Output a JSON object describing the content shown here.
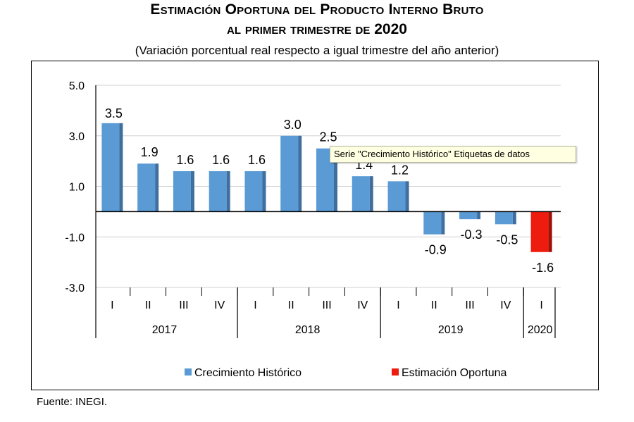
{
  "title_line1": "Estimación Oportuna del Producto Interno Bruto",
  "title_line2": "al primer trimestre de 2020",
  "subtitle": "(Variación porcentual real respecto a igual trimestre del año anterior)",
  "source": "Fuente: INEGI.",
  "tooltip": "Serie \"Crecimiento  Histórico\" Etiquetas de datos",
  "chart_data": {
    "type": "bar",
    "title": "Estimación Oportuna del Producto Interno Bruto al primer trimestre de 2020",
    "subtitle": "(Variación porcentual real respecto a igual trimestre del año anterior)",
    "ylim": [
      -3.0,
      5.0
    ],
    "yticks": [
      "5.0",
      "3.0",
      "1.0",
      "-1.0",
      "-3.0"
    ],
    "ytick_values": [
      5.0,
      3.0,
      1.0,
      -1.0,
      -3.0
    ],
    "grid": true,
    "legend_position": "bottom",
    "categories": [
      "I",
      "II",
      "III",
      "IV",
      "I",
      "II",
      "III",
      "IV",
      "I",
      "II",
      "III",
      "IV",
      "I"
    ],
    "years": [
      {
        "label": "2017",
        "count": 4
      },
      {
        "label": "2018",
        "count": 4
      },
      {
        "label": "2019",
        "count": 4
      },
      {
        "label": "2020",
        "count": 1
      }
    ],
    "values": [
      3.5,
      1.9,
      1.6,
      1.6,
      1.6,
      3.0,
      2.5,
      1.4,
      1.2,
      -0.9,
      -0.3,
      -0.5,
      -1.6
    ],
    "value_labels": [
      "3.5",
      "1.9",
      "1.6",
      "1.6",
      "1.6",
      "3.0",
      "2.5",
      "1.4",
      "1.2",
      "-0.9",
      "-0.3",
      "-0.5",
      "-1.6"
    ],
    "series": [
      {
        "name": "Crecimiento  Histórico",
        "color": "#5b9bd5",
        "indices": [
          0,
          1,
          2,
          3,
          4,
          5,
          6,
          7,
          8,
          9,
          10,
          11
        ]
      },
      {
        "name": "Estimación Oportuna",
        "color": "#ee1c0e",
        "indices": [
          12
        ]
      }
    ],
    "colors": {
      "historic": "#5b9bd5",
      "historic_side": "#3f6f9f",
      "estimate": "#ee1c0e",
      "estimate_side": "#a01008"
    }
  }
}
